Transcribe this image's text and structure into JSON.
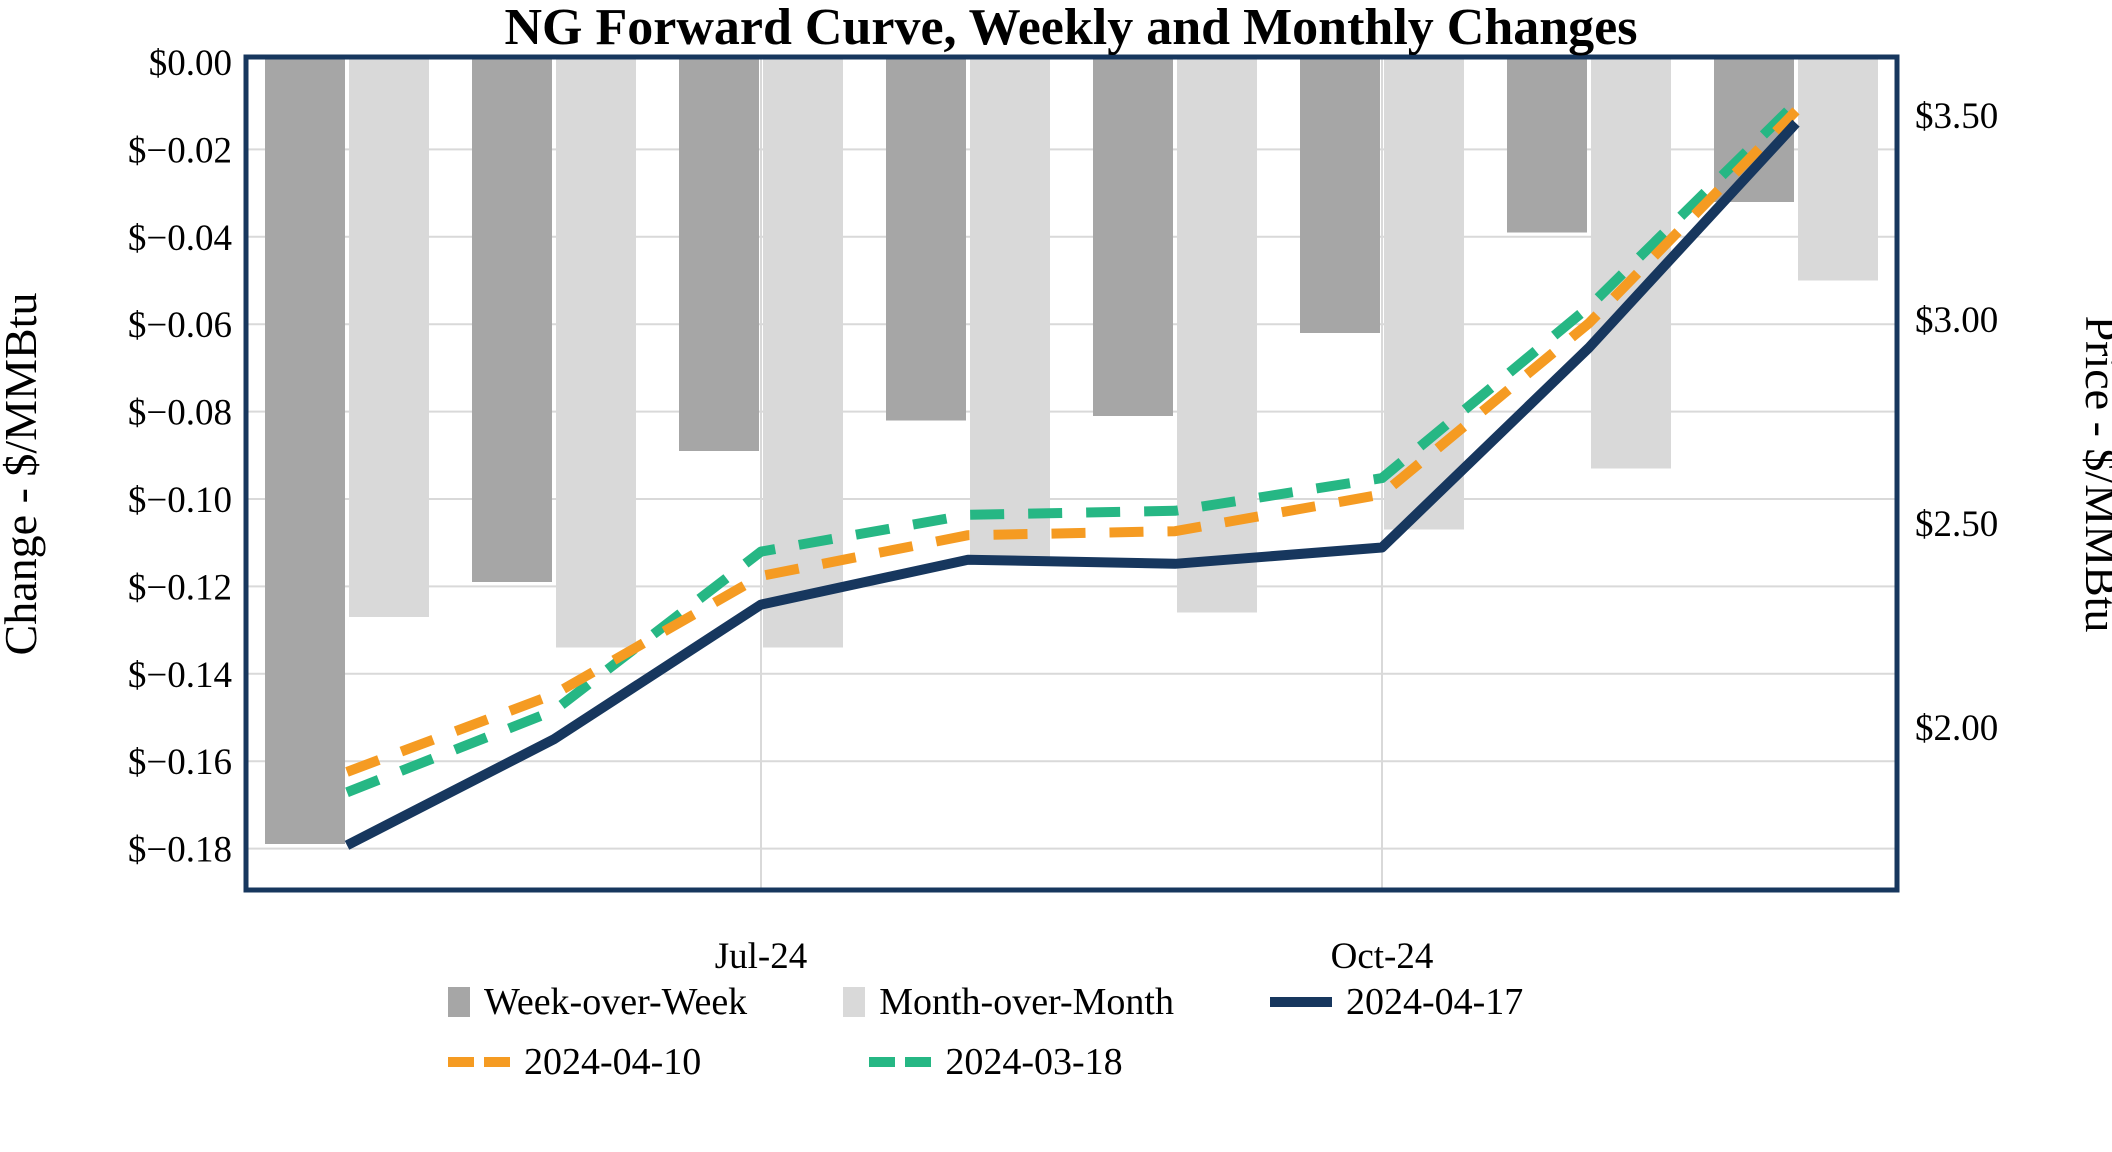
{
  "chart_data": {
    "type": "bar+line combo (dual axis)",
    "title": "NG Forward Curve, Weekly and Monthly Changes",
    "num_groups": 8,
    "x_axis": {
      "tick_labels": [
        "Jul-24",
        "Oct-24"
      ],
      "tick_group_indices": [
        2,
        5
      ],
      "vertical_gridlines_at_ticks": true
    },
    "left_axis": {
      "label": "Change - $/MMBtu",
      "tick_labels": [
        "$0.00",
        "$−0.02",
        "$−0.04",
        "$−0.06",
        "$−0.08",
        "$−0.10",
        "$−0.12",
        "$−0.14",
        "$−0.16",
        "$−0.18"
      ],
      "tick_values": [
        0,
        -0.02,
        -0.04,
        -0.06,
        -0.08,
        -0.1,
        -0.12,
        -0.14,
        -0.16,
        -0.18
      ],
      "range": [
        0,
        -0.19
      ],
      "applies_to": "bars"
    },
    "right_axis": {
      "label": "Price - $/MMBtu",
      "tick_labels": [
        "$3.50",
        "$3.00",
        "$2.50",
        "$2.00"
      ],
      "tick_values": [
        3.5,
        3.0,
        2.5,
        2.0
      ],
      "range": [
        3.64,
        1.6
      ],
      "applies_to": "lines"
    },
    "bar_series": [
      {
        "name": "Week-over-Week",
        "color": "#A6A6A6",
        "values": [
          -0.179,
          -0.119,
          -0.089,
          -0.082,
          -0.081,
          -0.062,
          -0.039,
          -0.032
        ]
      },
      {
        "name": "Month-over-Month",
        "color": "#D9D9D9",
        "values": [
          -0.127,
          -0.134,
          -0.134,
          -0.114,
          -0.126,
          -0.107,
          -0.093,
          -0.05
        ]
      }
    ],
    "line_series": [
      {
        "name": "2024-04-17",
        "color": "#17375E",
        "style": "solid",
        "values": [
          1.71,
          1.97,
          2.3,
          2.41,
          2.4,
          2.44,
          2.93,
          3.48
        ]
      },
      {
        "name": "2024-04-10",
        "color": "#F59B22",
        "style": "dashed",
        "values": [
          1.89,
          2.08,
          2.37,
          2.47,
          2.48,
          2.57,
          2.99,
          3.51
        ]
      },
      {
        "name": "2024-03-18",
        "color": "#26B784",
        "style": "dashed",
        "values": [
          1.84,
          2.04,
          2.43,
          2.52,
          2.53,
          2.61,
          3.03,
          3.53
        ]
      }
    ],
    "legend": {
      "position": "below plot, two rows",
      "row1": [
        "Week-over-Week",
        "Month-over-Month",
        "2024-04-17"
      ],
      "row2": [
        "2024-04-10",
        "2024-03-18"
      ]
    },
    "grid": {
      "horizontal": true,
      "color": "#D9D9D9"
    },
    "frame_color": "#17375E",
    "background": "#FFFFFF"
  }
}
